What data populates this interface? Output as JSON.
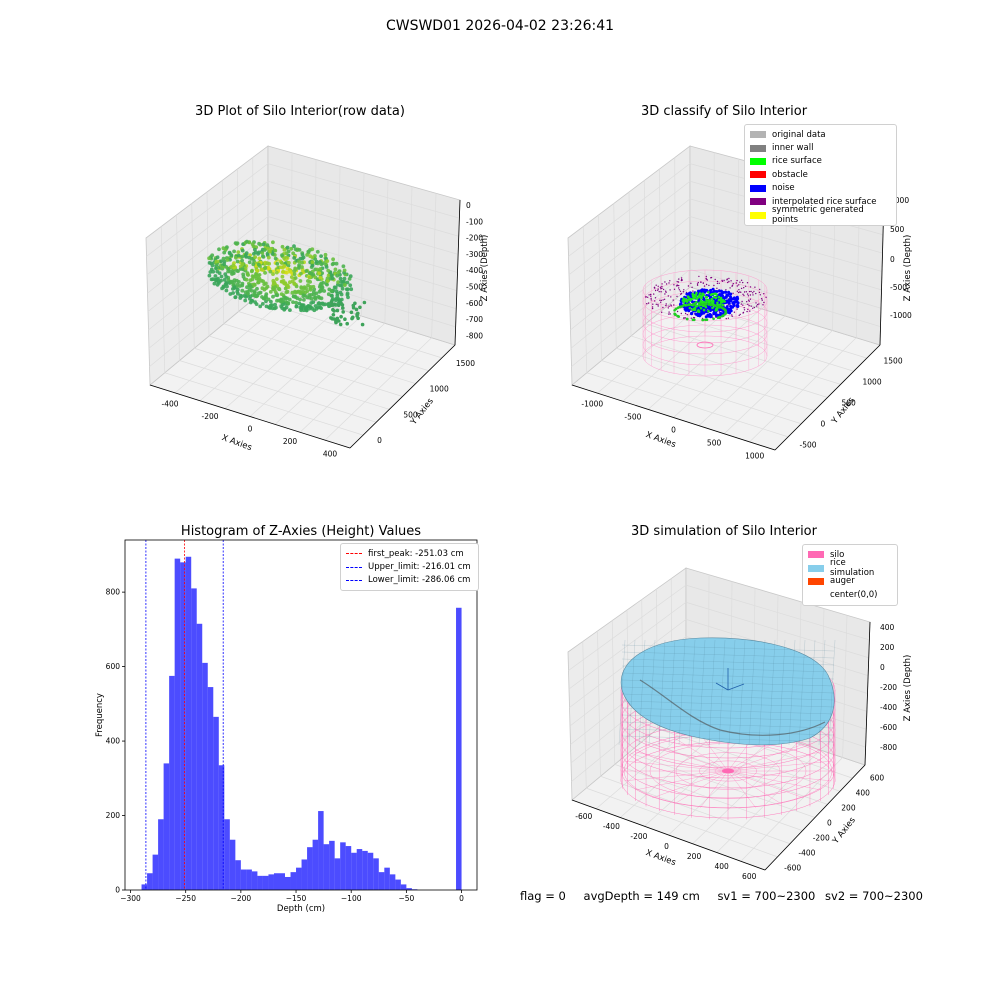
{
  "figure_title": "CWSWD01 2026-04-02 23:26:41",
  "panels": {
    "raw": {
      "title": "3D Plot of Silo Interior(row data)",
      "x_label": "X Axies",
      "y_label": "Y Axies",
      "z_label": "Z Axies (Depth)",
      "x_ticks": [
        "-400",
        "-200",
        "0",
        "200",
        "400"
      ],
      "y_ticks": [
        "0",
        "500",
        "1000",
        "1500"
      ],
      "z_ticks": [
        "0",
        "-100",
        "-200",
        "-300",
        "-400",
        "-500",
        "-600",
        "-700",
        "-800"
      ]
    },
    "classify": {
      "title": "3D classify of Silo Interior",
      "x_label": "X Axies",
      "y_label": "Y Axies",
      "z_label": "Z Axies (Depth)",
      "x_ticks": [
        "-1000",
        "-500",
        "0",
        "500",
        "1000"
      ],
      "y_ticks": [
        "-500",
        "0",
        "500",
        "1000",
        "1500"
      ],
      "z_ticks": [
        "1000",
        "500",
        "0",
        "-500",
        "-1000"
      ],
      "legend": [
        {
          "label": "original data",
          "color": "#b3b3b3"
        },
        {
          "label": "inner wall",
          "color": "#808080"
        },
        {
          "label": "rice surface",
          "color": "#00ff00"
        },
        {
          "label": "obstacle",
          "color": "#ff0000"
        },
        {
          "label": "noise",
          "color": "#0000ff"
        },
        {
          "label": "interpolated rice surface",
          "color": "#800080"
        },
        {
          "label": "symmetric generated points",
          "color": "#ffff00"
        }
      ]
    },
    "simulation": {
      "title": "3D simulation of Silo Interior",
      "x_label": "X Axies",
      "y_label": "Y Axies",
      "z_label": "Z Axies (Depth)",
      "x_ticks": [
        "-600",
        "-400",
        "-200",
        "0",
        "200",
        "400",
        "600"
      ],
      "y_ticks": [
        "-600",
        "-400",
        "-200",
        "0",
        "200",
        "400",
        "600"
      ],
      "z_ticks": [
        "400",
        "200",
        "0",
        "-200",
        "-400",
        "-600",
        "-800"
      ],
      "legend": [
        {
          "label": "silo",
          "color": "#ff69b4"
        },
        {
          "label": "rice simulation",
          "color": "#87ceeb"
        },
        {
          "label": "auger",
          "color": "#ff4500"
        },
        {
          "label": "center(0,0)",
          "color": "#ffffff"
        }
      ]
    }
  },
  "chart_data": {
    "type": "bar",
    "title": "Histogram of Z-Axies (Height) Values",
    "xlabel": "Depth (cm)",
    "ylabel": "Frequency",
    "xlim": [
      -305,
      14
    ],
    "ylim": [
      0,
      940
    ],
    "x_ticks": [
      -300,
      -250,
      -200,
      -150,
      -100,
      -50,
      0
    ],
    "y_ticks": [
      0,
      200,
      400,
      600,
      800
    ],
    "bar_color": "#0000ff",
    "bins": [
      {
        "left": -290,
        "right": -285,
        "count": 15
      },
      {
        "left": -285,
        "right": -280,
        "count": 45
      },
      {
        "left": -280,
        "right": -275,
        "count": 95
      },
      {
        "left": -275,
        "right": -270,
        "count": 190
      },
      {
        "left": -270,
        "right": -265,
        "count": 340
      },
      {
        "left": -265,
        "right": -260,
        "count": 575
      },
      {
        "left": -260,
        "right": -255,
        "count": 890
      },
      {
        "left": -255,
        "right": -250,
        "count": 880
      },
      {
        "left": -250,
        "right": -245,
        "count": 895
      },
      {
        "left": -245,
        "right": -240,
        "count": 810
      },
      {
        "left": -240,
        "right": -235,
        "count": 715
      },
      {
        "left": -235,
        "right": -230,
        "count": 610
      },
      {
        "left": -230,
        "right": -225,
        "count": 545
      },
      {
        "left": -225,
        "right": -220,
        "count": 465
      },
      {
        "left": -220,
        "right": -215,
        "count": 335
      },
      {
        "left": -215,
        "right": -210,
        "count": 190
      },
      {
        "left": -210,
        "right": -205,
        "count": 135
      },
      {
        "left": -205,
        "right": -200,
        "count": 80
      },
      {
        "left": -200,
        "right": -195,
        "count": 55
      },
      {
        "left": -195,
        "right": -190,
        "count": 55
      },
      {
        "left": -190,
        "right": -185,
        "count": 50
      },
      {
        "left": -185,
        "right": -180,
        "count": 38
      },
      {
        "left": -180,
        "right": -175,
        "count": 38
      },
      {
        "left": -175,
        "right": -170,
        "count": 42
      },
      {
        "left": -170,
        "right": -165,
        "count": 45
      },
      {
        "left": -165,
        "right": -160,
        "count": 45
      },
      {
        "left": -160,
        "right": -155,
        "count": 35
      },
      {
        "left": -155,
        "right": -150,
        "count": 48
      },
      {
        "left": -150,
        "right": -145,
        "count": 60
      },
      {
        "left": -145,
        "right": -140,
        "count": 82
      },
      {
        "left": -140,
        "right": -135,
        "count": 115
      },
      {
        "left": -135,
        "right": -130,
        "count": 135
      },
      {
        "left": -130,
        "right": -125,
        "count": 212
      },
      {
        "left": -125,
        "right": -120,
        "count": 123
      },
      {
        "left": -120,
        "right": -115,
        "count": 132
      },
      {
        "left": -115,
        "right": -110,
        "count": 85
      },
      {
        "left": -110,
        "right": -105,
        "count": 128
      },
      {
        "left": -105,
        "right": -100,
        "count": 118
      },
      {
        "left": -100,
        "right": -95,
        "count": 100
      },
      {
        "left": -95,
        "right": -90,
        "count": 110
      },
      {
        "left": -90,
        "right": -85,
        "count": 105
      },
      {
        "left": -85,
        "right": -80,
        "count": 100
      },
      {
        "left": -80,
        "right": -75,
        "count": 85
      },
      {
        "left": -75,
        "right": -70,
        "count": 48
      },
      {
        "left": -70,
        "right": -65,
        "count": 60
      },
      {
        "left": -65,
        "right": -60,
        "count": 42
      },
      {
        "left": -60,
        "right": -55,
        "count": 28
      },
      {
        "left": -55,
        "right": -50,
        "count": 15
      },
      {
        "left": -50,
        "right": -45,
        "count": 5
      },
      {
        "left": -45,
        "right": -40,
        "count": 2
      },
      {
        "left": -5,
        "right": 0,
        "count": 758
      }
    ],
    "vlines": [
      {
        "label": "first_peak: -251.03 cm",
        "x": -251.03,
        "color": "#ff0000"
      },
      {
        "label": "Upper_limit: -216.01 cm",
        "x": -216.01,
        "color": "#0000ff"
      },
      {
        "label": "Lower_limit: -286.06 cm",
        "x": -286.06,
        "color": "#0000ff"
      }
    ]
  },
  "footer": {
    "flag": "flag = 0",
    "avg_depth": "avgDepth = 149 cm",
    "sv1": "sv1 = 700~2300",
    "sv2": "sv2 = 700~2300"
  }
}
